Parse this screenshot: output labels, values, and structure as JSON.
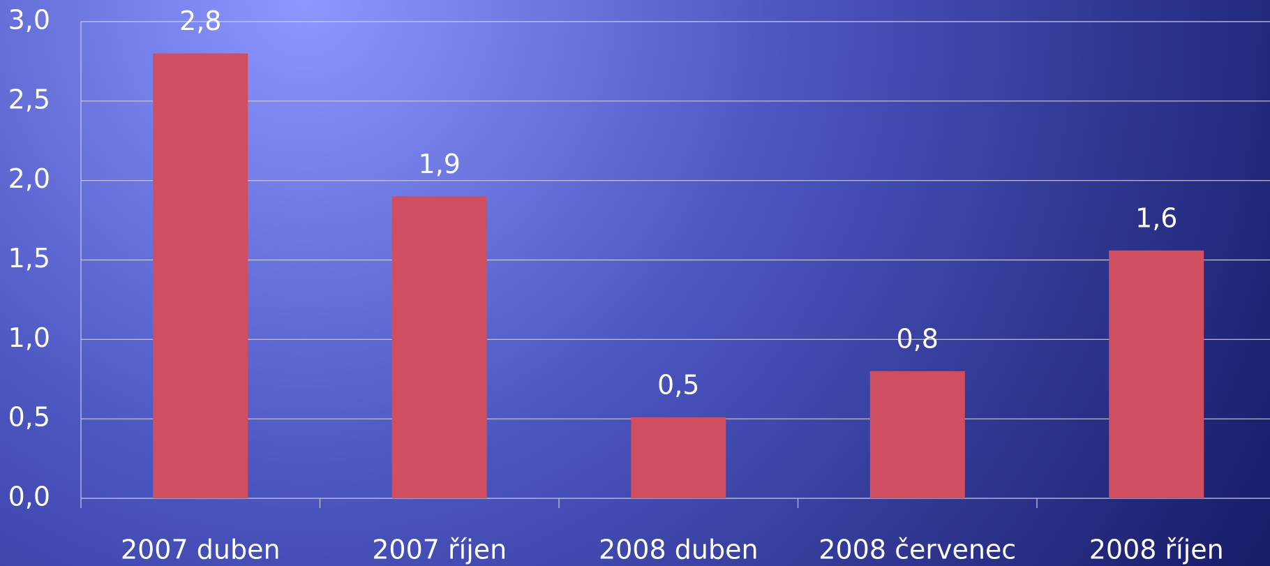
{
  "chart_data": {
    "type": "bar",
    "categories": [
      "2007 duben",
      "2007 říjen",
      "2008 duben",
      "2008 červenec",
      "2008 říjen"
    ],
    "values": [
      2.8,
      1.9,
      0.51,
      0.8,
      1.56
    ],
    "value_labels": [
      "2,8",
      "1,9",
      "0,5",
      "0,8",
      "1,6"
    ],
    "color": "#cf4e60",
    "ylim": [
      0,
      3
    ],
    "yticks": [
      {
        "value": 0,
        "label": "0,0"
      },
      {
        "value": 0.5,
        "label": "0,5"
      },
      {
        "value": 1,
        "label": "1,0"
      },
      {
        "value": 1.5,
        "label": "1,5"
      },
      {
        "value": 2,
        "label": "2,0"
      },
      {
        "value": 2.5,
        "label": "2,5"
      },
      {
        "value": 3,
        "label": "3,0"
      }
    ],
    "grid": true
  }
}
